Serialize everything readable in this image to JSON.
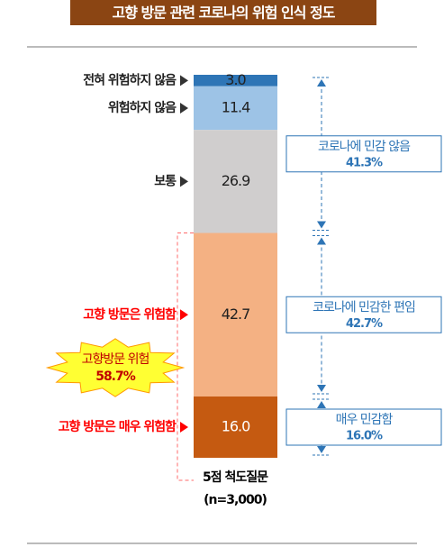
{
  "chart_data": {
    "type": "stacked-bar",
    "title": "고향 방문 관련 코로나의 위험 인식 정도",
    "categories": [
      "전혀 위험하지 않음",
      "위험하지 않음",
      "보통",
      "고향 방문은 위험함",
      "고향 방문은 매우 위험함"
    ],
    "values": [
      3.0,
      11.4,
      26.9,
      42.7,
      16.0
    ],
    "value_labels": [
      "3.0",
      "11.4",
      "26.9",
      "42.7",
      "16.0"
    ],
    "colors": [
      "#2e75b6",
      "#9dc3e6",
      "#d0cece",
      "#f4b183",
      "#c55a11"
    ],
    "label_colors": [
      "#222222",
      "#222222",
      "#222222",
      "#ff0000",
      "#ff0000"
    ],
    "groups": {
      "names": [
        "코로나에 민감 않음",
        "코로나에 민감한 편임",
        "매우 민감함"
      ],
      "values": [
        41.3,
        42.7,
        16.0
      ],
      "value_labels": [
        "41.3%",
        "42.7%",
        "16.0%"
      ]
    },
    "highlight": {
      "name": "고향방문 위험",
      "value": 58.7,
      "value_label": "58.7%"
    },
    "footnote": [
      "5점 척도질문",
      "(n=3,000)"
    ]
  }
}
